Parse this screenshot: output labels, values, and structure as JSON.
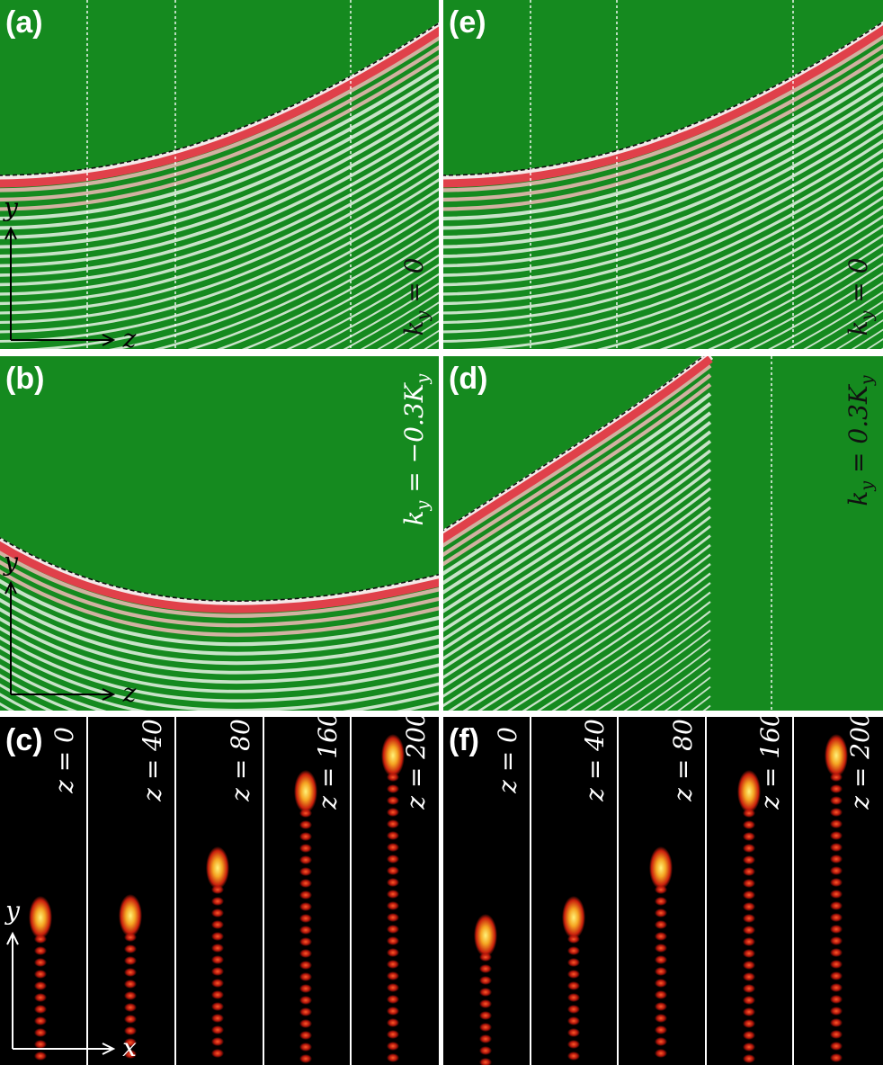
{
  "panels": {
    "a": {
      "label": "(a)",
      "annotation": [
        {
          "text": "k"
        },
        {
          "sub": "y"
        },
        {
          "text": " = 0"
        }
      ],
      "axis_vertical": "y",
      "axis_horizontal": "z"
    },
    "b": {
      "label": "(b)",
      "annotation": [
        {
          "text": "k"
        },
        {
          "sub": "y"
        },
        {
          "text": " = −0.3K"
        },
        {
          "sub": "y"
        }
      ],
      "axis_vertical": "y",
      "axis_horizontal": "z"
    },
    "c": {
      "label": "(c)",
      "slices": [
        "z = 0",
        "z = 40",
        "z = 80",
        "z = 160",
        "z = 200"
      ],
      "axis_vertical": "y",
      "axis_horizontal": "x"
    },
    "d": {
      "label": "(d)",
      "annotation": [
        {
          "text": "k"
        },
        {
          "sub": "y"
        },
        {
          "text": " = 0.3K"
        },
        {
          "sub": "y"
        }
      ]
    },
    "e": {
      "label": "(e)",
      "annotation": [
        {
          "text": "k"
        },
        {
          "sub": "y"
        },
        {
          "text": " = 0"
        }
      ]
    },
    "f": {
      "label": "(f)",
      "slices": [
        "z = 0",
        "z = 40",
        "z = 80",
        "z = 160",
        "z = 200"
      ]
    }
  }
}
